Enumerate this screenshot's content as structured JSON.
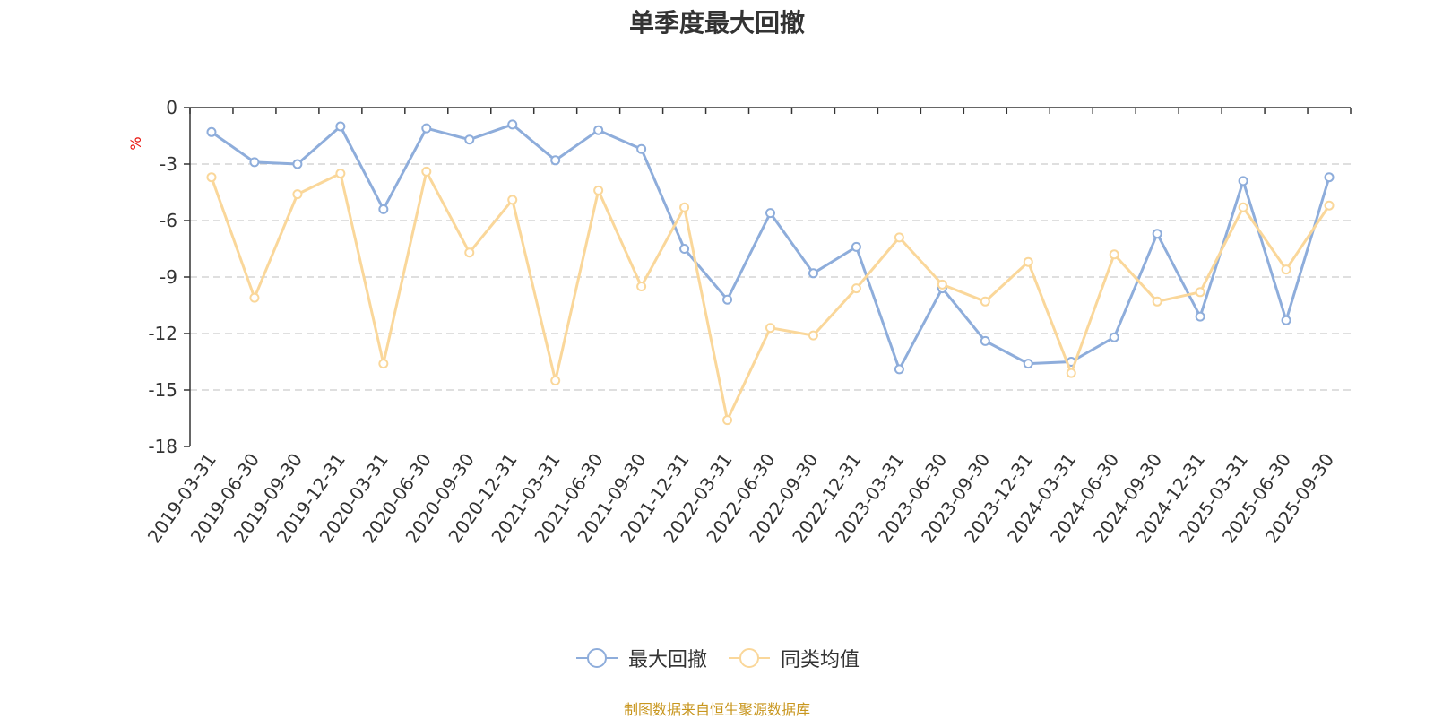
{
  "source_note": "制图数据来自恒生聚源数据库",
  "chart_data": {
    "type": "line",
    "title": "单季度最大回撤",
    "ylabel": "%",
    "ylim": [
      -18,
      0
    ],
    "yticks": [
      0,
      -3,
      -6,
      -9,
      -12,
      -15,
      -18
    ],
    "grid": true,
    "legend_position": "bottom-center",
    "categories": [
      "2019-03-31",
      "2019-06-30",
      "2019-09-30",
      "2019-12-31",
      "2020-03-31",
      "2020-06-30",
      "2020-09-30",
      "2020-12-31",
      "2021-03-31",
      "2021-06-30",
      "2021-09-30",
      "2021-12-31",
      "2022-03-31",
      "2022-06-30",
      "2022-09-30",
      "2022-12-31",
      "2023-03-31",
      "2023-06-30",
      "2023-09-30",
      "2023-12-31",
      "2024-03-31",
      "2024-06-30",
      "2024-09-30",
      "2024-12-31",
      "2025-03-31",
      "2025-06-30",
      "2025-09-30"
    ],
    "series": [
      {
        "name": "最大回撤",
        "color": "#8eaddb",
        "values": [
          -1.3,
          -2.9,
          -3.0,
          -1.0,
          -5.4,
          -1.1,
          -1.7,
          -0.9,
          -2.8,
          -1.2,
          -2.2,
          -7.5,
          -10.2,
          -5.6,
          -8.8,
          -7.4,
          -13.9,
          -9.6,
          -12.4,
          -13.6,
          -13.5,
          -12.2,
          -6.7,
          -11.1,
          -3.9,
          -11.3,
          -3.7
        ]
      },
      {
        "name": "同类均值",
        "color": "#fad79a",
        "values": [
          -3.7,
          -10.1,
          -4.6,
          -3.5,
          -13.6,
          -3.4,
          -7.7,
          -4.9,
          -14.5,
          -4.4,
          -9.5,
          -5.3,
          -16.6,
          -11.7,
          -12.1,
          -9.6,
          -6.9,
          -9.4,
          -10.3,
          -8.2,
          -14.1,
          -7.8,
          -10.3,
          -9.8,
          -5.3,
          -8.6,
          -5.2
        ]
      }
    ]
  }
}
